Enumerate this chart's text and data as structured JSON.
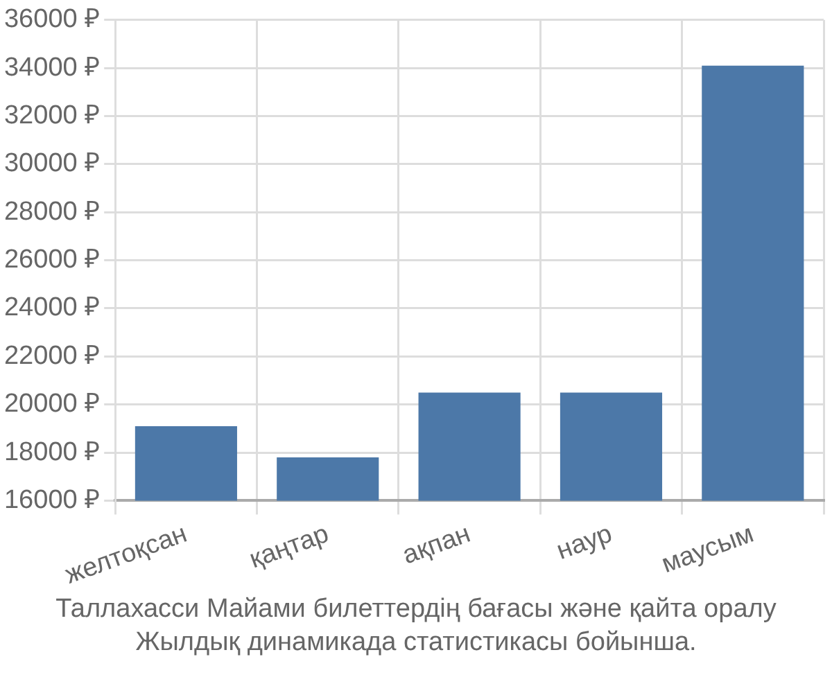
{
  "chart_data": {
    "type": "bar",
    "categories": [
      "желтоқсан",
      "қаңтар",
      "ақпан",
      "наур",
      "маусым"
    ],
    "values": [
      19100,
      17800,
      20500,
      20500,
      34100
    ],
    "color": "#4c78a8",
    "ylim": [
      16000,
      36000
    ],
    "yticks": [
      {
        "value": 16000,
        "label": "16000 ₽"
      },
      {
        "value": 18000,
        "label": "18000 ₽"
      },
      {
        "value": 20000,
        "label": "20000 ₽"
      },
      {
        "value": 22000,
        "label": "22000 ₽"
      },
      {
        "value": 24000,
        "label": "24000 ₽"
      },
      {
        "value": 26000,
        "label": "26000 ₽"
      },
      {
        "value": 28000,
        "label": "28000 ₽"
      },
      {
        "value": 30000,
        "label": "30000 ₽"
      },
      {
        "value": 32000,
        "label": "32000 ₽"
      },
      {
        "value": 34000,
        "label": "34000 ₽"
      },
      {
        "value": 36000,
        "label": "36000 ₽"
      }
    ],
    "grid": true,
    "annotations": [
      "Таллахасси Майами билеттердің бағасы және қайта оралу",
      "Жылдық динамикада статистикасы бойынша."
    ]
  }
}
